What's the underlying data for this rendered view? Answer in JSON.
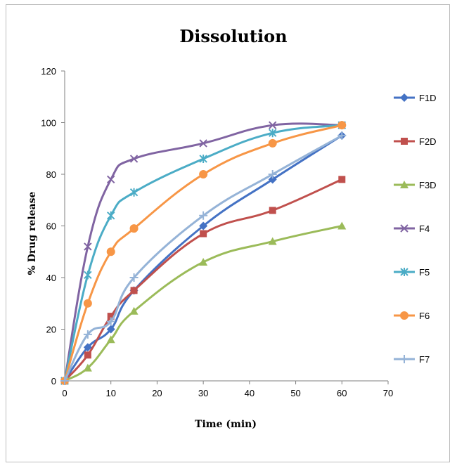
{
  "chart_data": {
    "type": "line",
    "title": "Dissolution",
    "xlabel": "Time (min)",
    "ylabel": "% Drug release",
    "xlim": [
      0,
      70
    ],
    "ylim": [
      0,
      120
    ],
    "xticks": [
      0,
      10,
      20,
      30,
      40,
      50,
      60,
      70
    ],
    "yticks": [
      0,
      20,
      40,
      60,
      80,
      100,
      120
    ],
    "grid": false,
    "legend": "right",
    "x": [
      0,
      5,
      10,
      15,
      30,
      45,
      60
    ],
    "series": [
      {
        "name": "F1D",
        "color": "#4472c4",
        "marker": "diamond",
        "values": [
          0,
          13,
          20,
          35,
          60,
          78,
          95
        ]
      },
      {
        "name": "F2D",
        "color": "#c0504d",
        "marker": "square",
        "values": [
          0,
          10,
          25,
          35,
          57,
          66,
          78
        ]
      },
      {
        "name": "F3D",
        "color": "#9bbb59",
        "marker": "triangle",
        "values": [
          0,
          5,
          16,
          27,
          46,
          54,
          60
        ]
      },
      {
        "name": "F4",
        "color": "#8064a2",
        "marker": "x",
        "values": [
          0,
          52,
          78,
          86,
          92,
          99,
          99
        ]
      },
      {
        "name": "F5",
        "color": "#4bacc6",
        "marker": "star",
        "values": [
          0,
          41,
          64,
          73,
          86,
          96,
          99
        ]
      },
      {
        "name": "F6",
        "color": "#f79646",
        "marker": "circle",
        "values": [
          0,
          30,
          50,
          59,
          80,
          92,
          99
        ]
      },
      {
        "name": "F7",
        "color": "#95b3d7",
        "marker": "plus",
        "values": [
          0,
          18,
          23,
          40,
          64,
          80,
          95
        ]
      }
    ]
  }
}
